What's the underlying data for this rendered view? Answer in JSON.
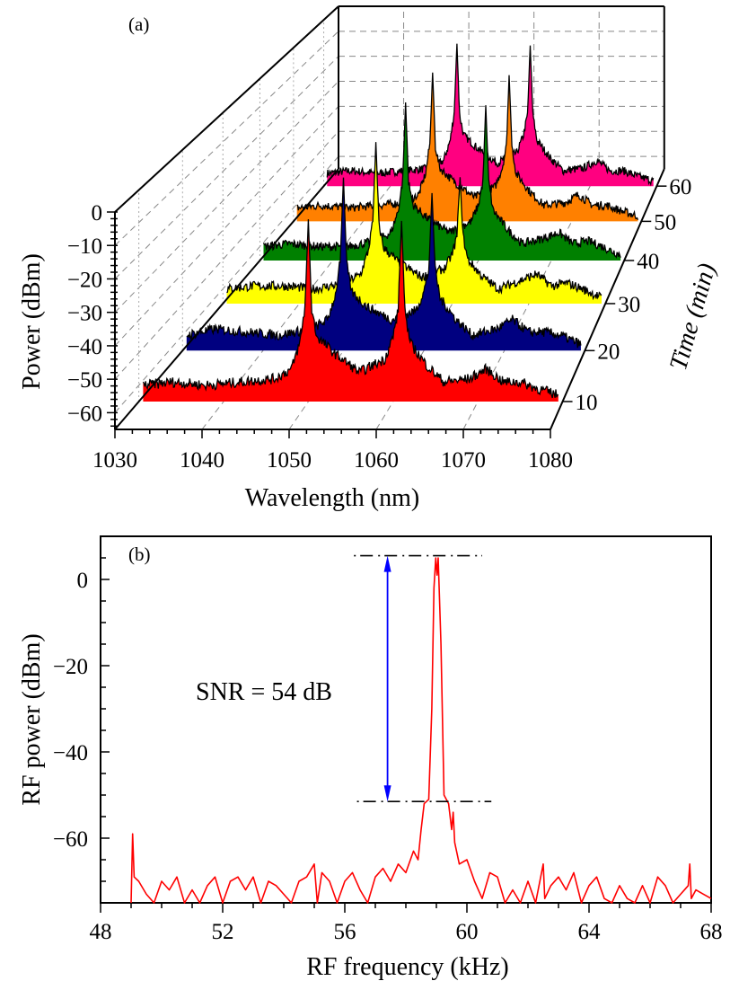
{
  "chart_data": [
    {
      "type": "area",
      "panel_label": "(a)",
      "xlabel": "Wavelength (nm)",
      "ylabel": "Power (dBm)",
      "zlabel": "Time (min)",
      "xlim": [
        1030,
        1080
      ],
      "ylim": [
        -65,
        0
      ],
      "zlim": [
        5,
        65
      ],
      "grid": true,
      "xticks": [
        1030,
        1040,
        1050,
        1060,
        1070,
        1080
      ],
      "xtick_labels": [
        "1030",
        "1040",
        "1050",
        "1060",
        "1070",
        "1080"
      ],
      "yticks": [
        0,
        -10,
        -20,
        -30,
        -40,
        -50,
        -60
      ],
      "ytick_labels": [
        "0",
        "−10",
        "−20",
        "−30",
        "−40",
        "−50",
        "−60"
      ],
      "zticks": [
        10,
        20,
        30,
        40,
        50,
        60
      ],
      "ztick_labels": [
        "10",
        "20",
        "30",
        "40",
        "50",
        "60"
      ],
      "wavelengths": [
        1030.5,
        1034,
        1038,
        1042,
        1046,
        1048,
        1049,
        1049.6,
        1050,
        1050.4,
        1051,
        1053,
        1056,
        1059,
        1060,
        1060.6,
        1061,
        1061.4,
        1062,
        1064,
        1066,
        1069,
        1071,
        1073,
        1075,
        1077,
        1079.5
      ],
      "series": [
        {
          "time": 10,
          "color": "#ff0000",
          "values": [
            -60,
            -59,
            -60,
            -59,
            -58,
            -55,
            -47,
            -36,
            -9,
            -37,
            -45,
            -50,
            -56,
            -52,
            -45,
            -37,
            -9.5,
            -37,
            -47,
            -54,
            -59,
            -58,
            -55,
            -59,
            -59,
            -61,
            -63
          ]
        },
        {
          "time": 20,
          "color": "#000080",
          "values": [
            -60,
            -58,
            -59,
            -60,
            -58,
            -55,
            -47,
            -36,
            -9,
            -37,
            -46,
            -51,
            -55,
            -52,
            -46,
            -39,
            -14,
            -39,
            -48,
            -55,
            -60,
            -58,
            -55,
            -59,
            -59,
            -60,
            -63
          ]
        },
        {
          "time": 30,
          "color": "#ffff00",
          "values": [
            -60,
            -59,
            -59,
            -60,
            -58,
            -55,
            -47,
            -37,
            -10,
            -38,
            -46,
            -51,
            -56,
            -53,
            -48,
            -42,
            -22,
            -42,
            -50,
            -56,
            -60,
            -57,
            -55,
            -59,
            -58,
            -60,
            -63
          ]
        },
        {
          "time": 40,
          "color": "#008000",
          "values": [
            -60,
            -59,
            -60,
            -60,
            -58,
            -55,
            -47,
            -36,
            -8.5,
            -37,
            -45,
            -50,
            -55,
            -51,
            -45,
            -37,
            -9.5,
            -37,
            -47,
            -54,
            -59,
            -57,
            -55,
            -59,
            -58,
            -60,
            -63
          ]
        },
        {
          "time": 50,
          "color": "#ff8000",
          "values": [
            -60,
            -59,
            -60,
            -59,
            -58,
            -55,
            -47,
            -36,
            -9.3,
            -37,
            -45,
            -50,
            -56,
            -52,
            -45,
            -37,
            -10.3,
            -37,
            -47,
            -54,
            -59,
            -58,
            -55,
            -59,
            -59,
            -61,
            -63
          ]
        },
        {
          "time": 60,
          "color": "#ff0080",
          "values": [
            -60,
            -59,
            -60,
            -59,
            -58,
            -55,
            -47,
            -36,
            -9.3,
            -37,
            -45,
            -50,
            -56,
            -52,
            -45,
            -37,
            -10,
            -37,
            -47,
            -54,
            -59,
            -58,
            -55,
            -59,
            -59,
            -61,
            -63
          ]
        }
      ]
    },
    {
      "type": "line",
      "panel_label": "(b)",
      "xlabel": "RF frequency (kHz)",
      "ylabel": "RF power (dBm)",
      "xlim": [
        48,
        68
      ],
      "ylim": [
        -75,
        10
      ],
      "grid": false,
      "color": "#ff0000",
      "xticks": [
        48,
        52,
        56,
        60,
        64,
        68
      ],
      "xtick_labels": [
        "48",
        "52",
        "56",
        "60",
        "64",
        "68"
      ],
      "yticks": [
        0,
        -20,
        -40,
        -60
      ],
      "ytick_labels": [
        "0",
        "−20",
        "−40",
        "−60"
      ],
      "x": [
        49.0,
        49.05,
        49.1,
        49.25,
        49.5,
        49.75,
        50.0,
        50.25,
        50.5,
        50.75,
        51.0,
        51.25,
        51.5,
        51.75,
        52.0,
        52.25,
        52.5,
        52.75,
        53.0,
        53.25,
        53.5,
        53.75,
        54.0,
        54.25,
        54.5,
        54.75,
        55.0,
        55.1,
        55.25,
        55.5,
        55.75,
        56.0,
        56.25,
        56.5,
        56.75,
        57.0,
        57.25,
        57.5,
        57.75,
        58.0,
        58.25,
        58.4,
        58.5,
        58.6,
        58.75,
        58.85,
        58.92,
        58.98,
        59.02,
        59.06,
        59.15,
        59.25,
        59.4,
        59.5,
        59.55,
        59.6,
        59.75,
        60.0,
        60.25,
        60.5,
        60.75,
        61.0,
        61.25,
        61.5,
        61.75,
        62.0,
        62.25,
        62.5,
        62.55,
        62.75,
        63.0,
        63.25,
        63.5,
        63.75,
        64.0,
        64.25,
        64.5,
        64.75,
        65.0,
        65.25,
        65.5,
        65.75,
        66.0,
        66.25,
        66.5,
        66.75,
        67.0,
        67.25,
        67.3,
        67.35,
        67.5,
        67.75,
        68.0
      ],
      "y": [
        -75,
        -59,
        -69,
        -70,
        -73,
        -75,
        -70,
        -72,
        -69,
        -75,
        -72,
        -75,
        -71,
        -69,
        -75,
        -70,
        -69,
        -72,
        -69,
        -75,
        -70,
        -71,
        -73,
        -75,
        -70,
        -69,
        -66,
        -75,
        -68,
        -70,
        -75,
        -70,
        -68,
        -72,
        -75,
        -69,
        -67,
        -70,
        -66,
        -68,
        -63,
        -65,
        -58,
        -52,
        -51,
        -30,
        -2,
        5,
        1,
        5,
        -15,
        -50,
        -52,
        -58,
        -54,
        -61,
        -66,
        -65,
        -70,
        -74,
        -68,
        -69,
        -75,
        -72,
        -75,
        -70,
        -75,
        -66,
        -74,
        -71,
        -69,
        -72,
        -68,
        -75,
        -71,
        -69,
        -74,
        -75,
        -71,
        -74,
        -75,
        -71,
        -75,
        -69,
        -71,
        -75,
        -73,
        -71,
        -66,
        -74,
        -72,
        -73,
        -74
      ],
      "annotations": {
        "snr_text": "SNR = 54 dB",
        "signal_level": 5.5,
        "noise_level": -51.5,
        "arrow_color": "#0000ff",
        "arrow_x": 57.4
      }
    }
  ]
}
